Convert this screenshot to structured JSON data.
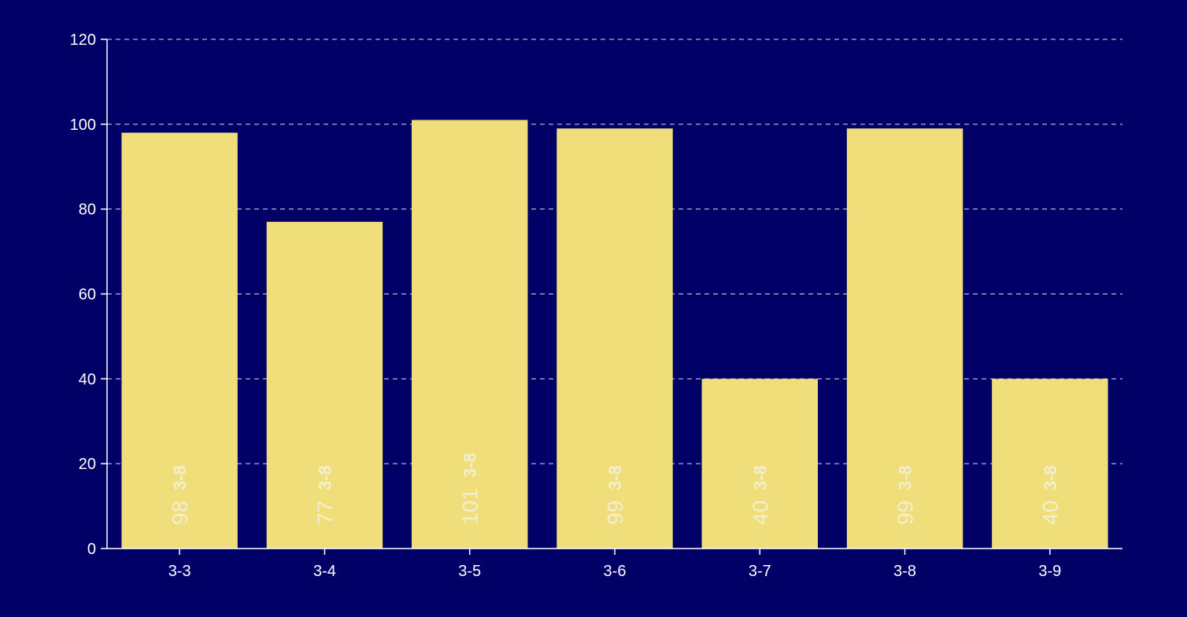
{
  "chart_data": {
    "type": "bar",
    "categories": [
      "3-3",
      "3-4",
      "3-5",
      "3-6",
      "3-7",
      "3-8",
      "3-9"
    ],
    "values": [
      98,
      77,
      101,
      99,
      40,
      99,
      40
    ],
    "bar_labels": [
      "98",
      "77",
      "101",
      "99",
      "40",
      "99",
      "40"
    ],
    "bar_sublabel": "3-8",
    "title": "",
    "xlabel": "",
    "ylabel": "",
    "ylim": [
      0,
      120
    ],
    "yticks": [
      0,
      20,
      40,
      60,
      80,
      100,
      120
    ],
    "grid": "horizontal dashed",
    "legend": "none",
    "colors": {
      "background": "#000066",
      "bar": "#f0de7b",
      "axis": "#ffffff",
      "grid": "#ffffff",
      "text": "#ffffff"
    }
  }
}
